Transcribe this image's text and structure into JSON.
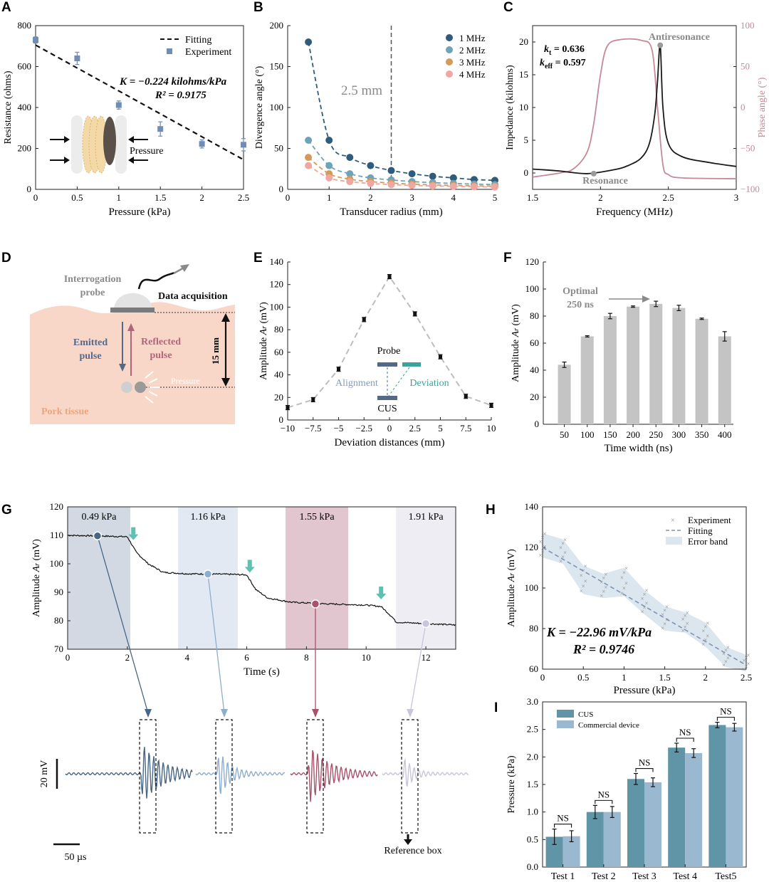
{
  "panel_letters": [
    "A",
    "B",
    "C",
    "D",
    "E",
    "F",
    "G",
    "H",
    "I"
  ],
  "colors": {
    "A_series": "#6f8db5",
    "B_1MHz": "#2f5b7c",
    "B_2MHz": "#6ea3b8",
    "B_3MHz": "#d39a5a",
    "B_4MHz": "#f0a7a2",
    "C_impedance": "#1a1a1a",
    "C_phase": "#c48a97",
    "bar_gray": "#c4c4c4",
    "G_band1": "#d2d9e3",
    "G_band2": "#e2e9f3",
    "G_band3": "#e2c6cf",
    "G_band4": "#eeedf3",
    "G_trace": "#111111",
    "wave1": "#486785",
    "wave2": "#8eaecd",
    "wave3": "#a8536c",
    "wave4": "#c9c5db",
    "H_band": "#dbe6ee",
    "H_fit": "#7d93b6",
    "I_cus": "#5f95a6",
    "I_commercial": "#9bb8d1",
    "arrow_teal": "#5fbfb0",
    "pork": "#f9d7c8"
  },
  "chart_data": [
    {
      "panel": "A",
      "type": "scatter",
      "xlabel": "Pressure (kPa)",
      "ylabel": "Resistance (ohms)",
      "xlim": [
        0,
        2.5
      ],
      "ylim": [
        0,
        800
      ],
      "xticks": [
        "0",
        "0.5",
        "1",
        "1.5",
        "2",
        "2.5"
      ],
      "yticks": [
        "0",
        "200",
        "400",
        "600",
        "800"
      ],
      "legend": [
        "Fitting",
        "Experiment"
      ],
      "series": [
        {
          "name": "Experiment",
          "x": [
            0,
            0.5,
            1.0,
            1.5,
            2.0,
            2.5
          ],
          "y": [
            730,
            640,
            412,
            295,
            222,
            218
          ],
          "err": [
            15,
            30,
            20,
            35,
            20,
            30
          ]
        },
        {
          "name": "Fitting",
          "x": [
            0,
            2.5
          ],
          "y": [
            705,
            145
          ]
        }
      ],
      "annotation_k": "K = −0.224 kilohms/kPa",
      "annotation_r2": "R² = 0.9175",
      "inset_label": "Pressure"
    },
    {
      "panel": "B",
      "type": "line",
      "xlabel": "Transducer radius (mm)",
      "ylabel": "Divergence angle (°)",
      "xlim": [
        0,
        5
      ],
      "ylim": [
        0,
        200
      ],
      "xticks": [
        "0",
        "1",
        "2",
        "3",
        "4",
        "5"
      ],
      "yticks": [
        "0",
        "50",
        "100",
        "150",
        "200"
      ],
      "x": [
        0.5,
        1.0,
        1.5,
        2.0,
        2.5,
        3.0,
        3.5,
        4.0,
        4.5,
        5.0
      ],
      "series": [
        {
          "name": "1 MHz",
          "values": [
            180,
            60,
            39,
            29,
            23,
            19,
            16,
            14,
            12,
            11
          ]
        },
        {
          "name": "2 MHz",
          "values": [
            60,
            29,
            19,
            14,
            11.5,
            9.5,
            8.2,
            7.2,
            6.4,
            5.8
          ]
        },
        {
          "name": "3 MHz",
          "values": [
            39,
            19,
            12.5,
            9.5,
            7.7,
            6.4,
            5.5,
            4.8,
            4.3,
            3.9
          ]
        },
        {
          "name": "4 MHz",
          "values": [
            29,
            14,
            9.5,
            7.2,
            5.8,
            4.8,
            4.1,
            3.6,
            3.2,
            2.9
          ]
        }
      ],
      "vline_x": 2.5,
      "vline_label": "2.5 mm"
    },
    {
      "panel": "C",
      "type": "line",
      "xlabel": "Frequency (MHz)",
      "ylabel": "Impedance (kilohms)",
      "ylabel_right": "Phase angle (°)",
      "xlim": [
        1.5,
        3
      ],
      "ylim": [
        -2.5,
        22.5
      ],
      "ylim_right": [
        -100,
        100
      ],
      "xticks": [
        "1.5",
        "2",
        "2.5",
        "3"
      ],
      "yticks": [
        "0",
        "5",
        "10",
        "15",
        "20"
      ],
      "yticks_right": [
        "−100",
        "−50",
        "0",
        "50",
        "100"
      ],
      "series": [
        {
          "name": "Impedance",
          "x": [
            1.5,
            1.7,
            1.9,
            2.1,
            2.2,
            2.3,
            2.36,
            2.4,
            2.42,
            2.44,
            2.46,
            2.5,
            2.6,
            2.8,
            3.0
          ],
          "y": [
            0.6,
            0.3,
            -0.1,
            0.5,
            1.1,
            2.3,
            4.5,
            9.0,
            14.0,
            19.5,
            10.0,
            4.5,
            2.5,
            1.6,
            1.0
          ]
        },
        {
          "name": "Phase",
          "x": [
            1.5,
            1.7,
            1.8,
            1.9,
            1.95,
            2.0,
            2.05,
            2.15,
            2.3,
            2.38,
            2.42,
            2.46,
            2.5,
            2.6,
            3.0
          ],
          "y": [
            -85,
            -80,
            -75,
            -55,
            -20,
            40,
            75,
            83,
            82,
            70,
            0,
            -70,
            -82,
            -86,
            -87
          ]
        }
      ],
      "kt": "= 0.636",
      "keff": "= 0.597",
      "antiresonance": "Antiresonance",
      "resonance": "Resonance"
    },
    {
      "panel": "E",
      "type": "scatter",
      "xlabel": "Deviation distances (mm)",
      "ylabel": "Amplitude A_r (mV)",
      "xlim": [
        -10,
        10
      ],
      "ylim": [
        0,
        140
      ],
      "xticks": [
        "−10",
        "−7.5",
        "−5",
        "−2.5",
        "0",
        "2.5",
        "5",
        "7.5",
        "10"
      ],
      "yticks": [
        "0",
        "20",
        "40",
        "60",
        "80",
        "100",
        "120",
        "140"
      ],
      "x": [
        -10,
        -7.5,
        -5,
        -2.5,
        0,
        2.5,
        5,
        7.5,
        10
      ],
      "values": [
        11,
        18,
        45,
        89,
        127,
        94,
        56,
        21,
        13
      ],
      "inset": {
        "probe": "Probe",
        "cus": "CUS",
        "alignment": "Alignment",
        "deviation": "Deviation"
      }
    },
    {
      "panel": "F",
      "type": "bar",
      "xlabel": "Time width (ns)",
      "ylabel": "Amplitude A_r (mV)",
      "ylim": [
        0,
        120
      ],
      "yticks": [
        "0",
        "20",
        "40",
        "60",
        "80",
        "100",
        "120"
      ],
      "categories": [
        "50",
        "100",
        "150",
        "200",
        "250",
        "300",
        "350",
        "400"
      ],
      "values": [
        44,
        65,
        80,
        87,
        89,
        86,
        78,
        65
      ],
      "err": [
        2,
        0.5,
        2,
        0.5,
        2,
        2,
        0.5,
        3.5
      ],
      "annotation": "Optimal 250 ns"
    },
    {
      "panel": "G",
      "type": "line",
      "xlabel": "Time (s)",
      "ylabel": "Amplitude A_r (mV)",
      "xlim": [
        0,
        13
      ],
      "ylim": [
        70,
        120
      ],
      "xticks": [
        "0",
        "2",
        "4",
        "6",
        "8",
        "10",
        "12"
      ],
      "yticks": [
        "70",
        "80",
        "90",
        "100",
        "110",
        "120"
      ],
      "x": [
        0,
        1.0,
        2.0,
        2.3,
        2.7,
        3.2,
        4.0,
        5.5,
        6.0,
        6.3,
        6.7,
        7.5,
        8.5,
        10.0,
        10.5,
        10.9,
        11.0,
        12.0,
        13.0
      ],
      "values": [
        110,
        109.8,
        109.5,
        104,
        100,
        97,
        96.5,
        96.3,
        96.1,
        91,
        88,
        86.5,
        86,
        85.5,
        85,
        81,
        79.5,
        79,
        78.5
      ],
      "bands": [
        {
          "label": "0.49 kPa",
          "x0": 0,
          "x1": 2.1
        },
        {
          "label": "1.16 kPa",
          "x0": 3.7,
          "x1": 5.7
        },
        {
          "label": "1.55 kPa",
          "x0": 7.3,
          "x1": 9.4
        },
        {
          "label": "1.91 kPa",
          "x0": 11.0,
          "x1": 13
        }
      ],
      "sample_points": [
        {
          "x": 1.0,
          "y": 109.8
        },
        {
          "x": 4.7,
          "y": 96.4
        },
        {
          "x": 8.3,
          "y": 85.9
        },
        {
          "x": 12.0,
          "y": 79
        }
      ],
      "drop_arrows_x": [
        2.2,
        6.1,
        10.5
      ],
      "scale_v": "20 mV",
      "scale_h": "50 µs",
      "reference_box": "Reference box"
    },
    {
      "panel": "H",
      "type": "scatter",
      "xlabel": "Pressure (kPa)",
      "ylabel": "Amplitude A_r (mV)",
      "xlim": [
        0,
        2.5
      ],
      "ylim": [
        60,
        140
      ],
      "xticks": [
        "0",
        "0.5",
        "1",
        "1.5",
        "2",
        "2.5"
      ],
      "yticks": [
        "60",
        "80",
        "100",
        "120",
        "140"
      ],
      "legend": [
        "Experiment",
        "Fitting",
        "Error band"
      ],
      "x": [
        0,
        0.25,
        0.5,
        0.75,
        1.0,
        1.25,
        1.5,
        1.75,
        2.0,
        2.25,
        2.5
      ],
      "values": [
        121,
        118,
        104,
        101,
        103,
        93,
        85,
        83,
        77,
        66,
        63
      ],
      "spread": [
        6,
        6,
        7,
        6,
        7,
        6,
        6,
        5,
        6,
        5,
        4
      ],
      "fit": [
        [
          0,
          120
        ],
        [
          2.5,
          62
        ]
      ],
      "annotation_k": "K = −22.96 mV/kPa",
      "annotation_r2": "R² = 0.9746"
    },
    {
      "panel": "I",
      "type": "bar",
      "ylabel": "Pressure (kPa)",
      "ylim": [
        0,
        3.0
      ],
      "yticks": [
        "0.0",
        "0.5",
        "1.0",
        "1.5",
        "2.0",
        "2.5",
        "3.0"
      ],
      "categories": [
        "Test 1",
        "Test 2",
        "Test 3",
        "Test 4",
        "Test5"
      ],
      "series": [
        {
          "name": "CUS",
          "values": [
            0.55,
            1.0,
            1.6,
            2.17,
            2.58
          ],
          "err": [
            0.14,
            0.12,
            0.1,
            0.08,
            0.05
          ]
        },
        {
          "name": "Commercial device",
          "values": [
            0.56,
            1.0,
            1.54,
            2.07,
            2.54
          ],
          "err": [
            0.1,
            0.1,
            0.08,
            0.08,
            0.07
          ]
        }
      ],
      "sig_label": "NS"
    }
  ],
  "panel_D": {
    "interrogation_probe": "Interrogation probe",
    "data_acquisition": "Data acquisition",
    "emitted_pulse": "Emitted pulse",
    "reflected_pulse": "Reflected pulse",
    "depth": "15 mm",
    "pressure": "Pressure",
    "tissue": "Pork tissue"
  }
}
